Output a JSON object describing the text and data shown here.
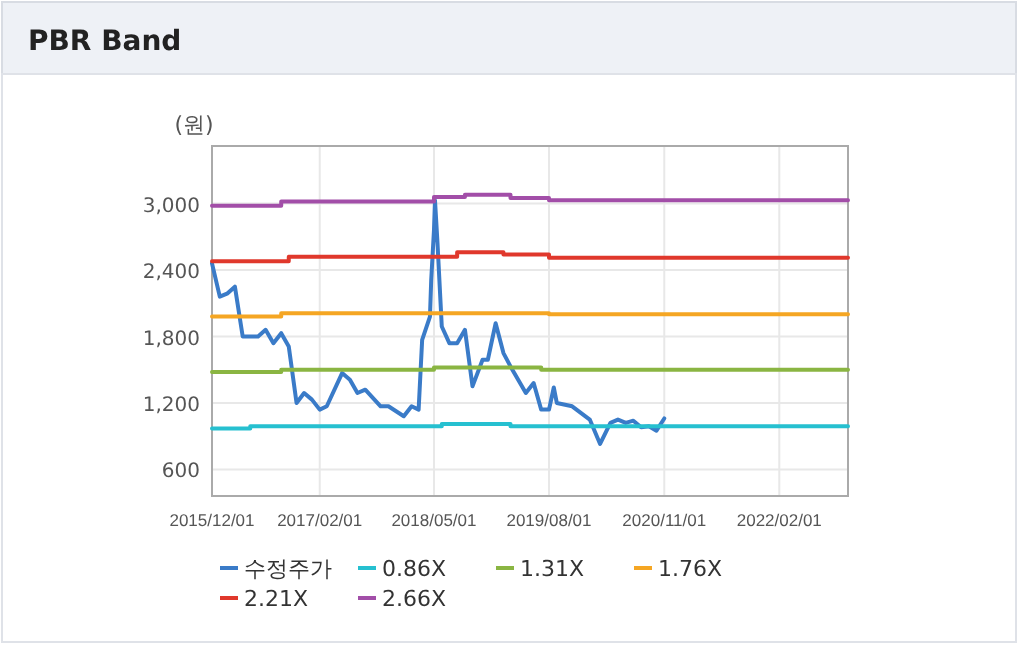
{
  "chart_data": {
    "type": "line",
    "title": "PBR Band",
    "ylabel": "(원)",
    "xlim": [
      "2015-12-01",
      "2022-11-01"
    ],
    "ylim": [
      360,
      3520
    ],
    "xticks": [
      {
        "value": "2015-12-01",
        "label": "2015/12/01"
      },
      {
        "value": "2017-02-01",
        "label": "2017/02/01"
      },
      {
        "value": "2018-05-01",
        "label": "2018/05/01"
      },
      {
        "value": "2019-08-01",
        "label": "2019/08/01"
      },
      {
        "value": "2020-11-01",
        "label": "2020/11/01"
      },
      {
        "value": "2022-02-01",
        "label": "2022/02/01"
      }
    ],
    "yticks": [
      {
        "value": 600,
        "label": "600"
      },
      {
        "value": 1200,
        "label": "1,200"
      },
      {
        "value": 1800,
        "label": "1,800"
      },
      {
        "value": 2400,
        "label": "2,400"
      },
      {
        "value": 3000,
        "label": "3,000"
      }
    ],
    "grid": true,
    "legend": "bottom",
    "marker": "none",
    "series": [
      {
        "name": "수정주가",
        "type": "line",
        "color": "#3a7bc8",
        "x": [
          "2015-12-01",
          "2016-01-01",
          "2016-02-01",
          "2016-03-01",
          "2016-04-01",
          "2016-06-01",
          "2016-07-01",
          "2016-08-01",
          "2016-09-01",
          "2016-10-01",
          "2016-11-01",
          "2016-12-01",
          "2017-01-01",
          "2017-02-01",
          "2017-03-01",
          "2017-05-01",
          "2017-06-01",
          "2017-07-01",
          "2017-08-01",
          "2017-10-01",
          "2017-11-01",
          "2018-01-01",
          "2018-02-01",
          "2018-03-01",
          "2018-03-15",
          "2018-04-15",
          "2018-04-20",
          "2018-05-01",
          "2018-05-05",
          "2018-05-15",
          "2018-06-01",
          "2018-07-01",
          "2018-08-01",
          "2018-09-01",
          "2018-10-01",
          "2018-11-10",
          "2018-12-01",
          "2019-01-01",
          "2019-02-01",
          "2019-03-01",
          "2019-05-01",
          "2019-06-01",
          "2019-07-01",
          "2019-08-01",
          "2019-08-20",
          "2019-09-01",
          "2019-11-01",
          "2020-01-10",
          "2020-02-20",
          "2020-04-01",
          "2020-05-01",
          "2020-06-01",
          "2020-07-01",
          "2020-08-01",
          "2020-09-01",
          "2020-10-01",
          "2020-11-01"
        ],
        "values": [
          2460,
          2160,
          2190,
          2250,
          1800,
          1800,
          1860,
          1740,
          1830,
          1710,
          1200,
          1290,
          1230,
          1140,
          1170,
          1470,
          1410,
          1290,
          1320,
          1170,
          1170,
          1080,
          1170,
          1140,
          1770,
          1980,
          2310,
          2760,
          3030,
          2640,
          1890,
          1740,
          1740,
          1860,
          1350,
          1590,
          1590,
          1920,
          1650,
          1530,
          1290,
          1380,
          1140,
          1140,
          1340,
          1200,
          1170,
          1050,
          830,
          1020,
          1050,
          1020,
          1040,
          980,
          990,
          950,
          1060
        ]
      },
      {
        "name": "0.86X",
        "type": "step",
        "color": "#26c0d0",
        "x": [
          "2015-12-01",
          "2016-05-01",
          "2018-06-01",
          "2019-03-01",
          "2022-11-01"
        ],
        "values": [
          970,
          990,
          1010,
          990,
          990
        ]
      },
      {
        "name": "1.31X",
        "type": "step",
        "color": "#8ab542",
        "x": [
          "2015-12-01",
          "2016-09-01",
          "2018-05-01",
          "2019-07-01",
          "2022-11-01"
        ],
        "values": [
          1480,
          1500,
          1520,
          1500,
          1500
        ]
      },
      {
        "name": "1.76X",
        "type": "step",
        "color": "#f5a623",
        "x": [
          "2015-12-01",
          "2016-09-01",
          "2019-08-01",
          "2022-11-01"
        ],
        "values": [
          1980,
          2010,
          2000,
          2000
        ]
      },
      {
        "name": "2.21X",
        "type": "step",
        "color": "#e0382c",
        "x": [
          "2015-12-01",
          "2016-10-01",
          "2018-08-01",
          "2019-02-01",
          "2019-08-01",
          "2022-11-01"
        ],
        "values": [
          2480,
          2520,
          2560,
          2540,
          2510,
          2510
        ]
      },
      {
        "name": "2.66X",
        "type": "step",
        "color": "#a24ea8",
        "x": [
          "2015-12-01",
          "2016-09-01",
          "2018-05-01",
          "2018-09-01",
          "2019-03-01",
          "2019-08-01",
          "2022-11-01"
        ],
        "values": [
          2980,
          3020,
          3060,
          3080,
          3050,
          3030,
          3030
        ]
      }
    ]
  }
}
